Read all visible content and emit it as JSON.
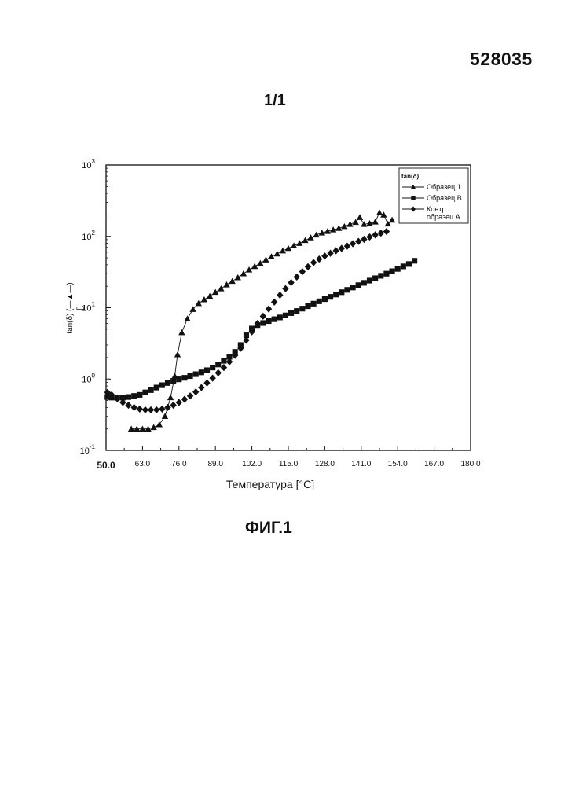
{
  "header": {
    "patent_number": "528035",
    "sheet_number": "1/1"
  },
  "figure_caption": "ФИГ.1",
  "chart_data": {
    "type": "scatter",
    "xlabel": "Температура [°C]",
    "ylabel": "tan(δ) (—▲—)",
    "yunit": "[]",
    "xlim": [
      50,
      180
    ],
    "ylim": [
      0.1,
      1000
    ],
    "yscale": "log",
    "x_ticks": [
      "50.0",
      "63.0",
      "76.0",
      "89.0",
      "102.0",
      "115.0",
      "128.0",
      "141.0",
      "154.0",
      "167.0",
      "180.0"
    ],
    "y_ticks": [
      {
        "base": "10",
        "exp": "-1",
        "value": 0.1
      },
      {
        "base": "10",
        "exp": "0",
        "value": 1
      },
      {
        "base": "10",
        "exp": "1",
        "value": 10
      },
      {
        "base": "10",
        "exp": "2",
        "value": 100
      },
      {
        "base": "10",
        "exp": "3",
        "value": 1000
      }
    ],
    "grid": false,
    "legend": {
      "placement": "top-right",
      "title": "tan(δ)"
    },
    "series": [
      {
        "name": "Образец 1",
        "marker": "triangle",
        "connected": true,
        "points": [
          [
            59,
            0.2
          ],
          [
            61,
            0.2
          ],
          [
            63,
            0.2
          ],
          [
            65,
            0.2
          ],
          [
            67,
            0.21
          ],
          [
            69,
            0.23
          ],
          [
            71,
            0.3
          ],
          [
            73,
            0.55
          ],
          [
            74.5,
            1.1
          ],
          [
            75.5,
            2.2
          ],
          [
            77,
            4.5
          ],
          [
            79,
            7
          ],
          [
            81,
            9.5
          ],
          [
            83,
            11.5
          ],
          [
            85,
            13
          ],
          [
            87,
            14.5
          ],
          [
            89,
            16.5
          ],
          [
            91,
            18.5
          ],
          [
            93,
            21
          ],
          [
            95,
            23.5
          ],
          [
            97,
            26.5
          ],
          [
            99,
            30
          ],
          [
            101,
            34
          ],
          [
            103,
            38
          ],
          [
            105,
            42
          ],
          [
            107,
            47
          ],
          [
            109,
            52
          ],
          [
            111,
            57
          ],
          [
            113,
            63
          ],
          [
            115,
            68
          ],
          [
            117,
            74
          ],
          [
            119,
            80
          ],
          [
            121,
            88
          ],
          [
            123,
            96
          ],
          [
            125,
            105
          ],
          [
            127,
            112
          ],
          [
            129,
            118
          ],
          [
            131,
            124
          ],
          [
            133,
            130
          ],
          [
            135,
            138
          ],
          [
            137,
            148
          ],
          [
            139,
            158
          ],
          [
            140.5,
            185
          ],
          [
            142,
            148
          ],
          [
            144,
            152
          ],
          [
            146,
            160
          ],
          [
            147.5,
            215
          ],
          [
            149,
            200
          ],
          [
            150.5,
            150
          ],
          [
            152,
            170
          ]
        ]
      },
      {
        "name": "Образец B",
        "marker": "square",
        "connected": false,
        "points": [
          [
            50.5,
            0.56
          ],
          [
            52,
            0.55
          ],
          [
            54,
            0.55
          ],
          [
            56,
            0.55
          ],
          [
            58,
            0.56
          ],
          [
            60,
            0.58
          ],
          [
            62,
            0.6
          ],
          [
            64,
            0.65
          ],
          [
            66,
            0.7
          ],
          [
            68,
            0.76
          ],
          [
            70,
            0.82
          ],
          [
            72,
            0.88
          ],
          [
            74,
            0.94
          ],
          [
            76,
            0.99
          ],
          [
            78,
            1.04
          ],
          [
            80,
            1.1
          ],
          [
            82,
            1.17
          ],
          [
            84,
            1.24
          ],
          [
            86,
            1.33
          ],
          [
            88,
            1.45
          ],
          [
            90,
            1.6
          ],
          [
            92,
            1.8
          ],
          [
            94,
            2.05
          ],
          [
            96,
            2.4
          ],
          [
            98,
            3
          ],
          [
            100,
            4.1
          ],
          [
            102,
            5.1
          ],
          [
            104,
            5.7
          ],
          [
            106,
            6.1
          ],
          [
            108,
            6.5
          ],
          [
            110,
            6.9
          ],
          [
            112,
            7.3
          ],
          [
            114,
            7.8
          ],
          [
            116,
            8.4
          ],
          [
            118,
            9
          ],
          [
            120,
            9.7
          ],
          [
            122,
            10.5
          ],
          [
            124,
            11.4
          ],
          [
            126,
            12.3
          ],
          [
            128,
            13.2
          ],
          [
            130,
            14.2
          ],
          [
            132,
            15.3
          ],
          [
            134,
            16.5
          ],
          [
            136,
            17.8
          ],
          [
            138,
            19.2
          ],
          [
            140,
            20.7
          ],
          [
            142,
            22.3
          ],
          [
            144,
            24
          ],
          [
            146,
            25.9
          ],
          [
            148,
            28
          ],
          [
            150,
            30
          ],
          [
            152,
            32.5
          ],
          [
            154,
            35
          ],
          [
            156,
            38
          ],
          [
            158,
            41
          ],
          [
            160,
            45.5
          ]
        ]
      },
      {
        "name": "Контр. образец A",
        "marker": "diamond",
        "connected": false,
        "points": [
          [
            50.5,
            0.65
          ],
          [
            52,
            0.6
          ],
          [
            54,
            0.53
          ],
          [
            56,
            0.47
          ],
          [
            58,
            0.43
          ],
          [
            60,
            0.4
          ],
          [
            62,
            0.38
          ],
          [
            64,
            0.37
          ],
          [
            66,
            0.37
          ],
          [
            68,
            0.37
          ],
          [
            70,
            0.38
          ],
          [
            72,
            0.4
          ],
          [
            74,
            0.43
          ],
          [
            76,
            0.47
          ],
          [
            78,
            0.52
          ],
          [
            80,
            0.58
          ],
          [
            82,
            0.66
          ],
          [
            84,
            0.76
          ],
          [
            86,
            0.88
          ],
          [
            88,
            1.03
          ],
          [
            90,
            1.22
          ],
          [
            92,
            1.45
          ],
          [
            94,
            1.75
          ],
          [
            96,
            2.15
          ],
          [
            98,
            2.7
          ],
          [
            100,
            3.5
          ],
          [
            102,
            4.6
          ],
          [
            104,
            6
          ],
          [
            106,
            7.6
          ],
          [
            108,
            9.6
          ],
          [
            110,
            12
          ],
          [
            112,
            15
          ],
          [
            114,
            18.5
          ],
          [
            116,
            22.5
          ],
          [
            118,
            27
          ],
          [
            120,
            32
          ],
          [
            122,
            37.5
          ],
          [
            124,
            43
          ],
          [
            126,
            48
          ],
          [
            128,
            53
          ],
          [
            130,
            58
          ],
          [
            132,
            63
          ],
          [
            134,
            68
          ],
          [
            136,
            73
          ],
          [
            138,
            79
          ],
          [
            140,
            85
          ],
          [
            142,
            91
          ],
          [
            144,
            98
          ],
          [
            146,
            105
          ],
          [
            148,
            111
          ],
          [
            150,
            117
          ]
        ]
      }
    ]
  }
}
